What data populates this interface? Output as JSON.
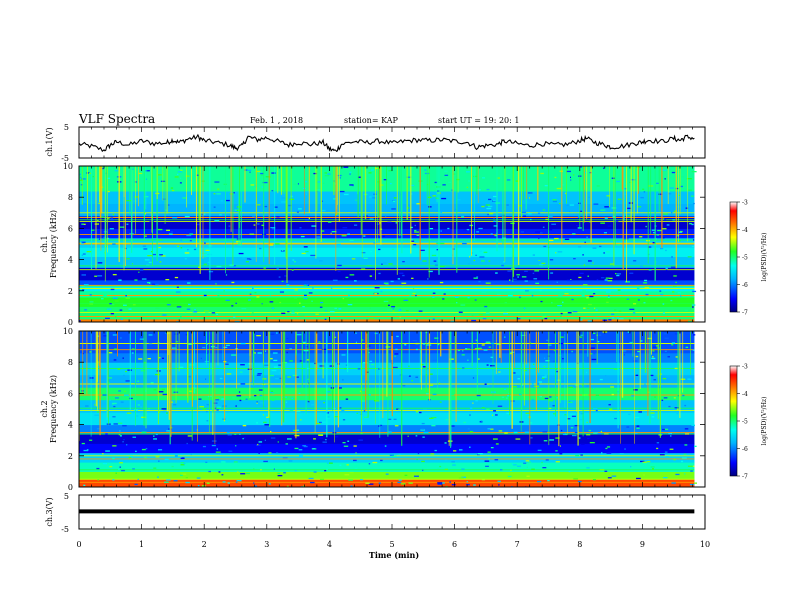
{
  "header": {
    "title": "VLF Spectra",
    "date": "Feb. 1 , 2018",
    "station": "station= KAP",
    "start": "start UT =  19: 20: 1"
  },
  "chart_data": [
    {
      "type": "line",
      "name": "ch1-voltage",
      "ylabel": "ch.1(V)",
      "ylim": [
        -5,
        5
      ],
      "yticks": [
        "5",
        "-5"
      ],
      "x_unit": "min",
      "xlim": [
        0,
        10
      ],
      "data_x_end": 9.83,
      "points": [
        [
          0,
          -0.5
        ],
        [
          0.2,
          -1.2
        ],
        [
          0.4,
          -2.5
        ],
        [
          0.5,
          -0.8
        ],
        [
          0.6,
          0.2
        ],
        [
          0.8,
          -0.8
        ],
        [
          1.0,
          0.5
        ],
        [
          1.2,
          -0.3
        ],
        [
          1.4,
          -0.1
        ],
        [
          1.5,
          0.8
        ],
        [
          1.6,
          0.0
        ],
        [
          1.75,
          1.2
        ],
        [
          1.9,
          1.8
        ],
        [
          2.0,
          0.6
        ],
        [
          2.2,
          0.0
        ],
        [
          2.4,
          -0.8
        ],
        [
          2.5,
          -1.8
        ],
        [
          2.6,
          -1.2
        ],
        [
          2.7,
          1.8
        ],
        [
          2.85,
          0.9
        ],
        [
          3.0,
          1.6
        ],
        [
          3.2,
          0.2
        ],
        [
          3.35,
          -0.8
        ],
        [
          3.5,
          0.0
        ],
        [
          3.7,
          -0.6
        ],
        [
          3.9,
          0.0
        ],
        [
          4.0,
          -2.1
        ],
        [
          4.1,
          -2.8
        ],
        [
          4.2,
          -0.5
        ],
        [
          4.4,
          0.3
        ],
        [
          4.6,
          0.0
        ],
        [
          4.8,
          0.5
        ],
        [
          5.0,
          -0.3
        ],
        [
          5.2,
          0.4
        ],
        [
          5.4,
          0.8
        ],
        [
          5.6,
          0.6
        ],
        [
          5.8,
          0.9
        ],
        [
          6.0,
          0.4
        ],
        [
          6.2,
          0.1
        ],
        [
          6.35,
          -1.5
        ],
        [
          6.5,
          -1.0
        ],
        [
          6.7,
          -0.5
        ],
        [
          6.8,
          0.5
        ],
        [
          7.0,
          -0.4
        ],
        [
          7.2,
          -1.0
        ],
        [
          7.4,
          -0.4
        ],
        [
          7.6,
          -0.8
        ],
        [
          7.8,
          -0.6
        ],
        [
          8.0,
          0.6
        ],
        [
          8.1,
          1.3
        ],
        [
          8.25,
          0.0
        ],
        [
          8.4,
          -0.8
        ],
        [
          8.5,
          -1.5
        ],
        [
          8.7,
          -1.1
        ],
        [
          8.9,
          -0.2
        ],
        [
          9.0,
          0.2
        ],
        [
          9.1,
          0.8
        ],
        [
          9.3,
          0.3
        ],
        [
          9.5,
          1.3
        ],
        [
          9.6,
          0.7
        ],
        [
          9.7,
          1.8
        ],
        [
          9.83,
          1.4
        ]
      ]
    },
    {
      "type": "heatmap",
      "name": "ch1-spectrogram",
      "ylabel": "ch.1",
      "ylabel2": "Frequency (kHz)",
      "ylim": [
        0,
        10
      ],
      "yticks": [
        "0",
        "2",
        "4",
        "6",
        "8",
        "10"
      ],
      "xlim": [
        0,
        10
      ],
      "data_x_end": 9.83,
      "bands": [
        [
          0,
          0.2,
          -3.8
        ],
        [
          0.2,
          1.0,
          -5.0
        ],
        [
          1.0,
          1.6,
          -4.8
        ],
        [
          1.6,
          2.0,
          -5.1
        ],
        [
          2.0,
          2.4,
          -5.4
        ],
        [
          2.4,
          2.7,
          -6.2
        ],
        [
          2.7,
          3.5,
          -6.7
        ],
        [
          3.5,
          4.2,
          -5.7
        ],
        [
          4.2,
          4.8,
          -5.4
        ],
        [
          4.8,
          5.4,
          -5.6
        ],
        [
          5.4,
          6.0,
          -6.4
        ],
        [
          6.0,
          6.8,
          -6.7
        ],
        [
          6.8,
          7.6,
          -5.8
        ],
        [
          7.6,
          8.4,
          -5.7
        ],
        [
          8.4,
          10.0,
          -5.1
        ]
      ],
      "lines_khz": [
        0.35,
        0.6,
        1.2,
        1.7,
        2.15,
        2.3,
        2.35,
        3.35,
        3.6,
        5.0,
        5.05,
        5.25,
        5.6,
        6.45,
        6.55,
        6.7,
        7.0
      ],
      "colorbar": {
        "label": "log(PSD)(V²/Hz)",
        "ticks": [
          "-3",
          "-4",
          "-5",
          "-6",
          "-7"
        ],
        "range": [
          -7,
          -3
        ]
      }
    },
    {
      "type": "heatmap",
      "name": "ch2-spectrogram",
      "ylabel": "ch.2",
      "ylabel2": "Frequency (kHz)",
      "ylim": [
        0,
        10
      ],
      "yticks": [
        "0",
        "2",
        "4",
        "6",
        "8",
        "10"
      ],
      "xlim": [
        0,
        10
      ],
      "data_x_end": 9.83,
      "bands": [
        [
          0,
          0.5,
          -3.6
        ],
        [
          0.5,
          1.0,
          -4.6
        ],
        [
          1.0,
          1.6,
          -5.2
        ],
        [
          1.6,
          2.2,
          -5.6
        ],
        [
          2.2,
          2.8,
          -6.5
        ],
        [
          2.8,
          3.4,
          -6.7
        ],
        [
          3.4,
          4.0,
          -6.0
        ],
        [
          4.0,
          4.8,
          -5.5
        ],
        [
          4.8,
          5.6,
          -5.7
        ],
        [
          5.6,
          6.4,
          -5.0
        ],
        [
          6.4,
          7.2,
          -5.8
        ],
        [
          7.2,
          8.0,
          -5.6
        ],
        [
          8.0,
          8.6,
          -6.0
        ],
        [
          8.6,
          10.0,
          -6.2
        ]
      ],
      "lines_khz": [
        0.3,
        0.5,
        1.1,
        1.8,
        2.0,
        3.4,
        3.5,
        4.9,
        5.05,
        5.9,
        6.6,
        7.6,
        8.8,
        9.2
      ],
      "colorbar": {
        "label": "log(PSD)(V²/Hz)",
        "ticks": [
          "-3",
          "-4",
          "-5",
          "-6",
          "-7"
        ],
        "range": [
          -7,
          -3
        ]
      }
    },
    {
      "type": "line",
      "name": "ch3-voltage",
      "ylabel": "ch.3(V)",
      "ylim": [
        -5,
        5
      ],
      "yticks": [
        "5",
        "-5"
      ],
      "xlabel": "Time (min)",
      "xlim": [
        0,
        10
      ],
      "xticks": [
        "0",
        "1",
        "2",
        "3",
        "4",
        "5",
        "6",
        "7",
        "8",
        "9",
        "10"
      ],
      "data_x_end": 9.83,
      "points": [
        [
          0,
          0.2
        ],
        [
          9.83,
          0.2
        ]
      ]
    }
  ]
}
